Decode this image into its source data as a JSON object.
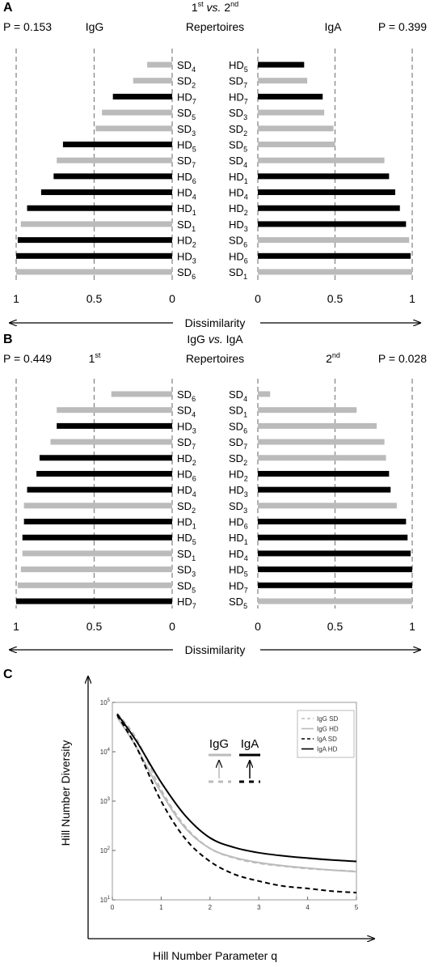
{
  "colors": {
    "hd": "#000000",
    "sd": "#bbbbbb",
    "grid": "#888888"
  },
  "chart_data": [
    {
      "panel": "A",
      "type": "bar",
      "title_line1_main": "1",
      "title_line1_sup": "st",
      "title_line1_mid": " vs. ",
      "title_line1_main2": "2",
      "title_line1_sup2": "nd",
      "title_line2": "Repertoires",
      "xlabel": "Dissimilarity",
      "xlim": [
        0,
        1
      ],
      "ticks": [
        "1",
        "0.5",
        "0",
        "0",
        "0.5",
        "1"
      ],
      "left": {
        "label": "IgG",
        "p_value": "P = 0.153",
        "categories": [
          {
            "base": "SD",
            "sub": "4",
            "value": 0.16
          },
          {
            "base": "SD",
            "sub": "2",
            "value": 0.25
          },
          {
            "base": "HD",
            "sub": "7",
            "value": 0.38
          },
          {
            "base": "SD",
            "sub": "5",
            "value": 0.45
          },
          {
            "base": "SD",
            "sub": "3",
            "value": 0.49
          },
          {
            "base": "HD",
            "sub": "5",
            "value": 0.7
          },
          {
            "base": "SD",
            "sub": "7",
            "value": 0.74
          },
          {
            "base": "HD",
            "sub": "6",
            "value": 0.76
          },
          {
            "base": "HD",
            "sub": "4",
            "value": 0.84
          },
          {
            "base": "HD",
            "sub": "1",
            "value": 0.93
          },
          {
            "base": "SD",
            "sub": "1",
            "value": 0.97
          },
          {
            "base": "HD",
            "sub": "2",
            "value": 0.99
          },
          {
            "base": "HD",
            "sub": "3",
            "value": 1.0
          },
          {
            "base": "SD",
            "sub": "6",
            "value": 1.0
          }
        ]
      },
      "right": {
        "label": "IgA",
        "p_value": "P = 0.399",
        "categories": [
          {
            "base": "HD",
            "sub": "5",
            "value": 0.3
          },
          {
            "base": "SD",
            "sub": "7",
            "value": 0.32
          },
          {
            "base": "HD",
            "sub": "7",
            "value": 0.42
          },
          {
            "base": "SD",
            "sub": "3",
            "value": 0.43
          },
          {
            "base": "SD",
            "sub": "2",
            "value": 0.49
          },
          {
            "base": "SD",
            "sub": "5",
            "value": 0.5
          },
          {
            "base": "SD",
            "sub": "4",
            "value": 0.82
          },
          {
            "base": "HD",
            "sub": "1",
            "value": 0.85
          },
          {
            "base": "HD",
            "sub": "4",
            "value": 0.89
          },
          {
            "base": "HD",
            "sub": "2",
            "value": 0.92
          },
          {
            "base": "HD",
            "sub": "3",
            "value": 0.96
          },
          {
            "base": "SD",
            "sub": "6",
            "value": 0.98
          },
          {
            "base": "HD",
            "sub": "6",
            "value": 0.99
          },
          {
            "base": "SD",
            "sub": "1",
            "value": 1.0
          }
        ]
      }
    },
    {
      "panel": "B",
      "type": "bar",
      "title_line1_main": "IgG",
      "title_line1_sup": "",
      "title_line1_mid": " vs. ",
      "title_line1_main2": "IgA",
      "title_line1_sup2": "",
      "title_line2": "Repertoires",
      "xlabel": "Dissimilarity",
      "xlim": [
        0,
        1
      ],
      "ticks": [
        "1",
        "0.5",
        "0",
        "0",
        "0.5",
        "1"
      ],
      "left": {
        "label": "1",
        "label_sup": "st",
        "p_value": "P = 0.449",
        "categories": [
          {
            "base": "SD",
            "sub": "6",
            "value": 0.39
          },
          {
            "base": "SD",
            "sub": "4",
            "value": 0.74
          },
          {
            "base": "HD",
            "sub": "3",
            "value": 0.74
          },
          {
            "base": "SD",
            "sub": "7",
            "value": 0.78
          },
          {
            "base": "HD",
            "sub": "2",
            "value": 0.85
          },
          {
            "base": "HD",
            "sub": "6",
            "value": 0.87
          },
          {
            "base": "HD",
            "sub": "4",
            "value": 0.93
          },
          {
            "base": "SD",
            "sub": "2",
            "value": 0.95
          },
          {
            "base": "HD",
            "sub": "1",
            "value": 0.95
          },
          {
            "base": "HD",
            "sub": "5",
            "value": 0.96
          },
          {
            "base": "SD",
            "sub": "1",
            "value": 0.96
          },
          {
            "base": "SD",
            "sub": "3",
            "value": 0.97
          },
          {
            "base": "SD",
            "sub": "5",
            "value": 0.99
          },
          {
            "base": "HD",
            "sub": "7",
            "value": 1.0
          }
        ]
      },
      "right": {
        "label": "2",
        "label_sup": "nd",
        "p_value": "P = 0.028",
        "categories": [
          {
            "base": "SD",
            "sub": "4",
            "value": 0.08
          },
          {
            "base": "SD",
            "sub": "1",
            "value": 0.64
          },
          {
            "base": "SD",
            "sub": "6",
            "value": 0.77
          },
          {
            "base": "SD",
            "sub": "7",
            "value": 0.82
          },
          {
            "base": "SD",
            "sub": "2",
            "value": 0.83
          },
          {
            "base": "HD",
            "sub": "2",
            "value": 0.85
          },
          {
            "base": "HD",
            "sub": "3",
            "value": 0.86
          },
          {
            "base": "SD",
            "sub": "3",
            "value": 0.9
          },
          {
            "base": "HD",
            "sub": "6",
            "value": 0.96
          },
          {
            "base": "HD",
            "sub": "1",
            "value": 0.97
          },
          {
            "base": "HD",
            "sub": "4",
            "value": 0.99
          },
          {
            "base": "HD",
            "sub": "5",
            "value": 1.0
          },
          {
            "base": "HD",
            "sub": "7",
            "value": 1.0
          },
          {
            "base": "SD",
            "sub": "5",
            "value": 1.0
          }
        ]
      }
    },
    {
      "panel": "C",
      "type": "line",
      "xlabel": "Hill Number Parameter q",
      "ylabel": "Hill Number Diversity",
      "xlim": [
        0,
        5
      ],
      "ylim_log10": [
        1,
        5
      ],
      "xticks": [
        "0",
        "1",
        "2",
        "3",
        "4",
        "5"
      ],
      "yticks": [
        {
          "base": "10",
          "exp": "1"
        },
        {
          "base": "10",
          "exp": "2"
        },
        {
          "base": "10",
          "exp": "3"
        },
        {
          "base": "10",
          "exp": "4"
        },
        {
          "base": "10",
          "exp": "5"
        }
      ],
      "inset": {
        "left_label": "IgG",
        "right_label": "IgA"
      },
      "series": [
        {
          "name": "IgG SD",
          "color": "#bbbbbb",
          "dash": "6,4",
          "x": [
            0.1,
            0.5,
            1.0,
            1.5,
            2.0,
            2.5,
            3.0,
            3.5,
            4.0,
            4.5,
            5.0
          ],
          "y": [
            60000,
            18000,
            1700,
            300,
            110,
            70,
            55,
            48,
            43,
            40,
            38
          ]
        },
        {
          "name": "IgG HD",
          "color": "#bbbbbb",
          "dash": "",
          "x": [
            0.1,
            0.5,
            1.0,
            1.5,
            2.0,
            2.5,
            3.0,
            3.5,
            4.0,
            4.5,
            5.0
          ],
          "y": [
            50000,
            12000,
            1500,
            280,
            110,
            72,
            57,
            49,
            44,
            40,
            37
          ]
        },
        {
          "name": "IgA SD",
          "color": "#000000",
          "dash": "6,4",
          "x": [
            0.1,
            0.5,
            1.0,
            1.5,
            2.0,
            2.5,
            3.0,
            3.5,
            4.0,
            4.5,
            5.0
          ],
          "y": [
            55000,
            12000,
            1000,
            170,
            60,
            33,
            24,
            19,
            17,
            15,
            14
          ]
        },
        {
          "name": "IgA HD",
          "color": "#000000",
          "dash": "",
          "x": [
            0.1,
            0.5,
            1.0,
            1.5,
            2.0,
            2.5,
            3.0,
            3.5,
            4.0,
            4.5,
            5.0
          ],
          "y": [
            58000,
            16000,
            2400,
            500,
            180,
            115,
            90,
            78,
            70,
            64,
            60
          ]
        }
      ]
    }
  ]
}
